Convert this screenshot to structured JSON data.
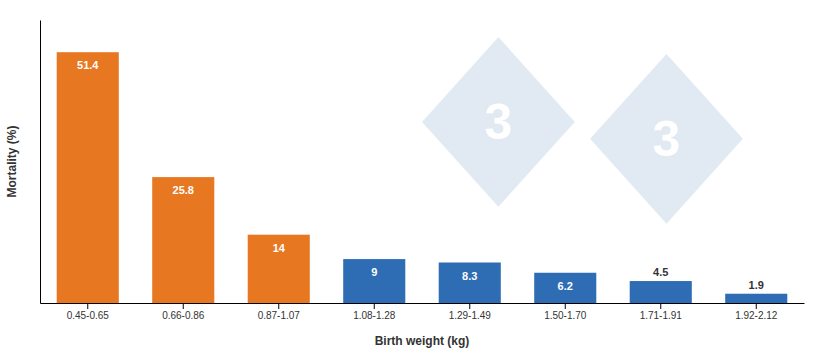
{
  "chart_data": {
    "type": "bar",
    "categories": [
      "0.45-0.65",
      "0.66-0.86",
      "0.87-1.07",
      "1.08-1.28",
      "1.29-1.49",
      "1.50-1.70",
      "1.71-1.91",
      "1.92-2.12"
    ],
    "values": [
      51.4,
      25.8,
      14,
      9,
      8.3,
      6.2,
      4.5,
      1.9
    ],
    "colors": [
      "#E87722",
      "#E87722",
      "#E87722",
      "#2E6DB4",
      "#2E6DB4",
      "#2E6DB4",
      "#2E6DB4",
      "#2E6DB4"
    ],
    "x_label": "Birth weight (kg)",
    "y_label": "Mortality (%)",
    "ylim": [
      0,
      58
    ],
    "data_labels": true,
    "tick_labels": "x",
    "annotations": [
      "3",
      "3"
    ]
  }
}
